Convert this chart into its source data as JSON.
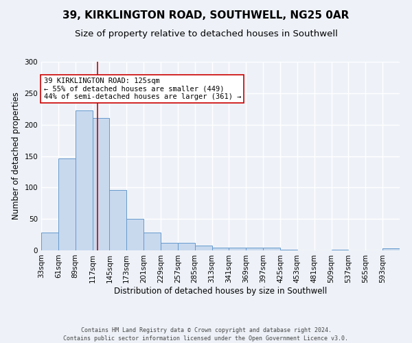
{
  "title1": "39, KIRKLINGTON ROAD, SOUTHWELL, NG25 0AR",
  "title2": "Size of property relative to detached houses in Southwell",
  "xlabel": "Distribution of detached houses by size in Southwell",
  "ylabel": "Number of detached properties",
  "bin_edges": [
    33,
    61,
    89,
    117,
    145,
    173,
    201,
    229,
    257,
    285,
    313,
    341,
    369,
    397,
    425,
    453,
    481,
    509,
    537,
    565,
    593,
    621
  ],
  "bar_heights": [
    28,
    146,
    222,
    211,
    96,
    50,
    28,
    12,
    12,
    8,
    4,
    4,
    4,
    4,
    1,
    0,
    0,
    1,
    0,
    0,
    3
  ],
  "bar_color": "#c8d9ee",
  "bar_edge_color": "#6699cc",
  "property_size": 125,
  "vline_color": "#cc0000",
  "annotation_title": "39 KIRKLINGTON ROAD: 125sqm",
  "annotation_line1": "← 55% of detached houses are smaller (449)",
  "annotation_line2": "44% of semi-detached houses are larger (361) →",
  "annotation_box_color": "#ffffff",
  "annotation_border_color": "#cc0000",
  "ylim": [
    0,
    300
  ],
  "yticks": [
    0,
    50,
    100,
    150,
    200,
    250,
    300
  ],
  "footer1": "Contains HM Land Registry data © Crown copyright and database right 2024.",
  "footer2": "Contains public sector information licensed under the Open Government Licence v3.0.",
  "bg_color": "#eef2f8",
  "grid_color": "#ffffff",
  "title_fontsize": 11,
  "subtitle_fontsize": 9.5,
  "axis_label_fontsize": 8.5,
  "tick_fontsize": 7.5,
  "footer_fontsize": 6.0
}
